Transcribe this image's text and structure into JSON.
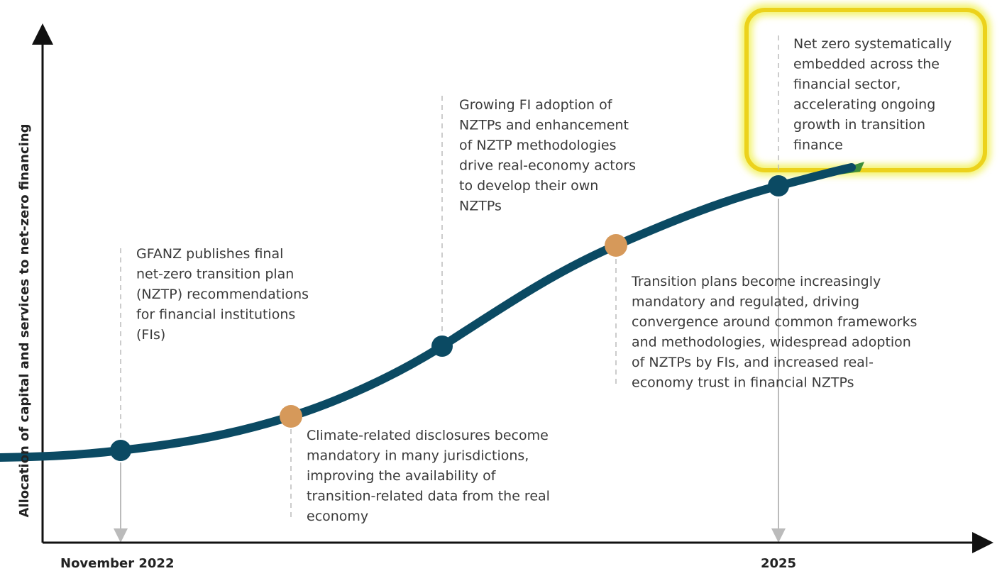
{
  "y_axis_label": "Allocation of capital and services to net-zero financing",
  "x_labels": [
    "November 2022",
    "2025"
  ],
  "milestones": [
    {
      "lines": [
        "GFANZ publishes final",
        "net-zero transition plan",
        "(NZTP) recommendations",
        "for financial institutions",
        "(FIs)"
      ]
    },
    {
      "lines": [
        "Climate-related disclosures become",
        "mandatory in many jurisdictions,",
        "improving the availability of",
        "transition-related data from the real",
        "economy"
      ]
    },
    {
      "lines": [
        "Growing FI adoption of",
        "NZTPs and enhancement",
        "of NZTP methodologies",
        "drive real-economy actors",
        "to develop their own",
        "NZTPs"
      ]
    },
    {
      "lines": [
        "Transition plans become increasingly",
        "mandatory and regulated, driving",
        "convergence around common frameworks",
        "and methodologies, widespread adoption",
        "of NZTPs by FIs, and increased real-",
        "economy trust in financial NZTPs"
      ]
    },
    {
      "lines": [
        "Net zero systematically",
        "embedded across the",
        "financial sector,",
        "accelerating ongoing",
        "growth in transition",
        "finance"
      ]
    }
  ]
}
